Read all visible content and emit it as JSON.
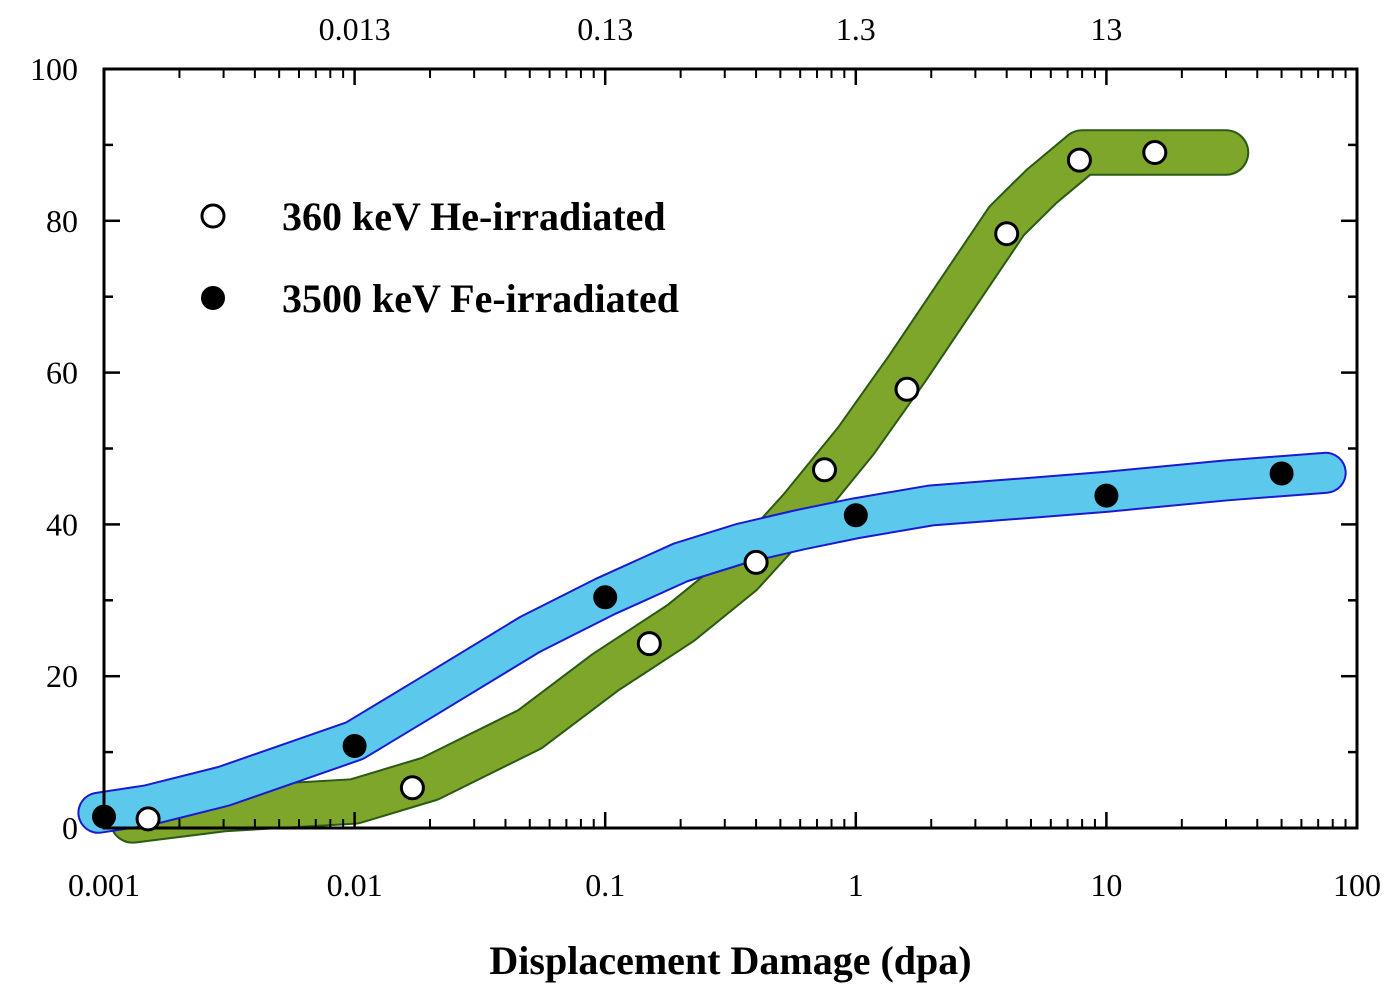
{
  "chart_data": {
    "type": "scatter",
    "title": "",
    "xlabel": "Displacement Damage (dpa)",
    "ylabel": "",
    "x_scale": "log",
    "xlim": [
      0.001,
      100
    ],
    "ylim": [
      0,
      100
    ],
    "grid": false,
    "legend_position": "top-left",
    "x_tick_labels": [
      "0.001",
      "0.01",
      "0.1",
      "1",
      "10",
      "100"
    ],
    "x_tick_values": [
      0.001,
      0.01,
      0.1,
      1,
      10,
      100
    ],
    "y_tick_labels": [
      "0",
      "20",
      "40",
      "60",
      "80",
      "100"
    ],
    "y_tick_values": [
      0,
      20,
      40,
      60,
      80,
      100
    ],
    "top_axis_tick_labels": [
      "0.013",
      "0.13",
      "1.3",
      "13"
    ],
    "top_axis_tick_values_bottom_units": [
      0.01,
      0.1,
      1,
      10
    ],
    "series": [
      {
        "name": "360 keV He-irradiated",
        "marker": "open-circle",
        "band_color": "#7ea62a",
        "band_edge_color": "#2a5a14",
        "x": [
          0.0015,
          0.017,
          0.15,
          0.4,
          0.75,
          1.6,
          4.0,
          7.8,
          15.6
        ],
        "y": [
          1.2,
          5.3,
          24.3,
          35.0,
          47.2,
          57.8,
          78.3,
          88.0,
          89.0
        ]
      },
      {
        "name": "3500 keV Fe-irradiated",
        "marker": "filled-circle",
        "band_color": "#5bc8ec",
        "band_edge_color": "#1a1ad0",
        "x": [
          0.001,
          0.01,
          0.1,
          1.0,
          10.0,
          50.0
        ],
        "y": [
          1.5,
          10.8,
          30.4,
          41.2,
          43.8,
          46.7
        ]
      }
    ],
    "bands": [
      {
        "series": "360 keV He-irradiated",
        "color": "#7ea62a",
        "edge": "#2a5a14",
        "x": [
          0.0013,
          0.003,
          0.01,
          0.02,
          0.05,
          0.1,
          0.2,
          0.35,
          0.6,
          1.0,
          1.6,
          2.5,
          4.0,
          5.5,
          8.0,
          30.0
        ],
        "y": [
          1.0,
          2.5,
          3.5,
          6.5,
          13.0,
          20.5,
          27.0,
          33.5,
          42.0,
          51.0,
          60.5,
          70.0,
          80.0,
          84.5,
          89.0,
          89.0
        ],
        "halfwidth": 2.8
      },
      {
        "series": "3500 keV Fe-irradiated",
        "color": "#5bc8ec",
        "edge": "#1a1ad0",
        "x": [
          0.00095,
          0.0015,
          0.003,
          0.01,
          0.02,
          0.05,
          0.1,
          0.2,
          0.35,
          0.6,
          1.0,
          2.0,
          5.0,
          10.0,
          30.0,
          75.0
        ],
        "y": [
          2.0,
          3.0,
          5.5,
          11.5,
          17.5,
          25.5,
          30.5,
          35.0,
          37.5,
          39.3,
          40.8,
          42.5,
          43.5,
          44.3,
          45.8,
          46.8
        ],
        "halfwidth": 2.5
      }
    ]
  }
}
